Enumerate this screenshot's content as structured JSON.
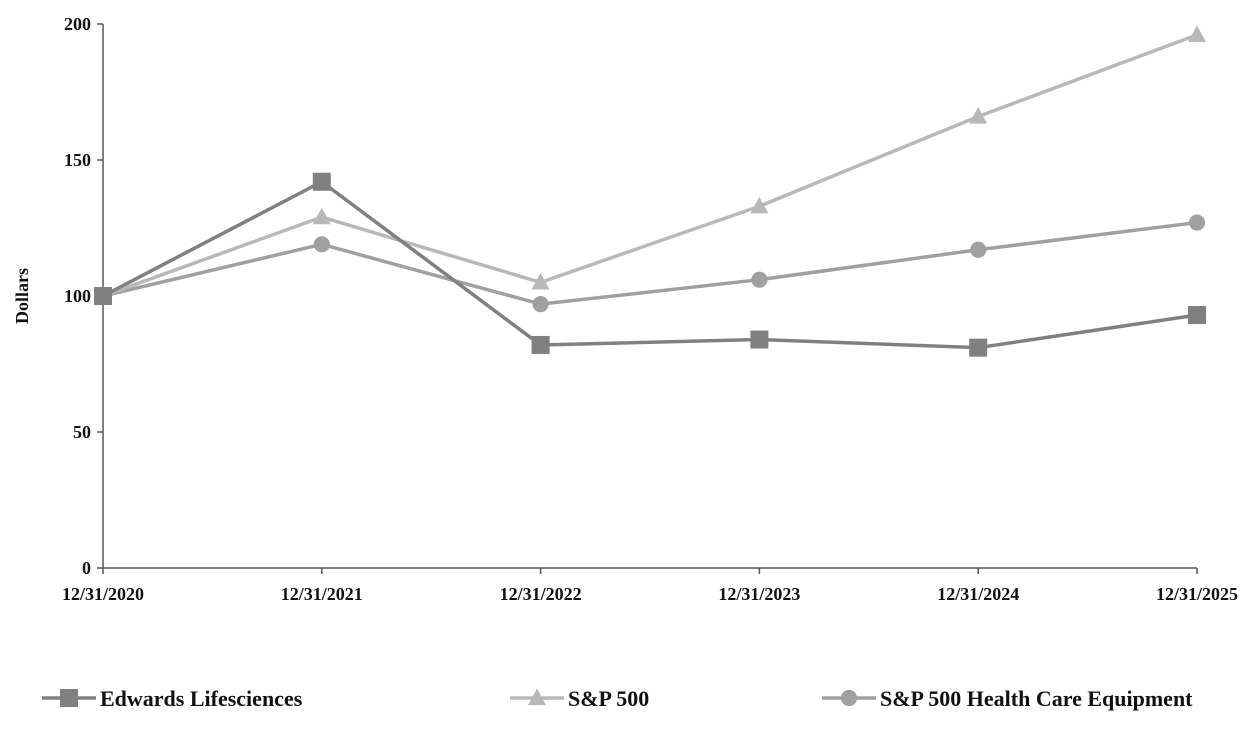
{
  "chart_data": {
    "type": "line",
    "title": "",
    "xlabel": "",
    "ylabel": "Dollars",
    "categories": [
      "12/31/2020",
      "12/31/2021",
      "12/31/2022",
      "12/31/2023",
      "12/31/2024",
      "12/31/2025"
    ],
    "y_ticks": [
      "0",
      "50",
      "100",
      "150",
      "200"
    ],
    "ylim": [
      0,
      200
    ],
    "grid": false,
    "legend_position": "bottom",
    "series": [
      {
        "name": "Edwards Lifesciences",
        "values": [
          100,
          142,
          82,
          84,
          81,
          93
        ],
        "marker": "square",
        "color": "#808080"
      },
      {
        "name": "S&P 500",
        "values": [
          100,
          129,
          105,
          133,
          166,
          196
        ],
        "marker": "triangle",
        "color": "#b8b8b8"
      },
      {
        "name": "S&P 500 Health Care Equipment",
        "values": [
          100,
          119,
          97,
          106,
          117,
          127
        ],
        "marker": "circle",
        "color": "#a0a0a0"
      }
    ]
  }
}
